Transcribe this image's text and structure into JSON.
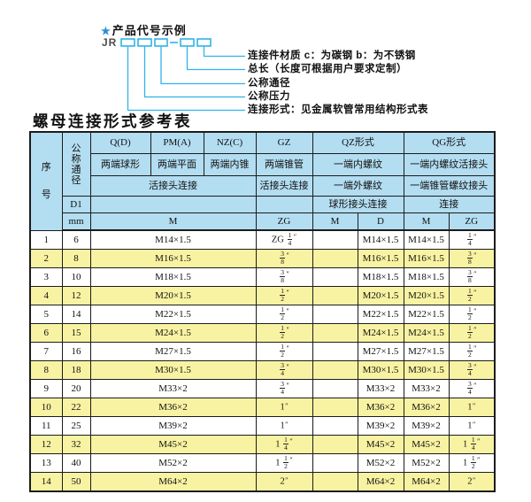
{
  "colors": {
    "accent": "#2fb4e8",
    "star": "#2a8fd0",
    "header_bg": "#b3ddf1",
    "row_alt_bg": "#f8f3a2",
    "border": "#1c1c1c"
  },
  "diagram": {
    "star": "★",
    "title": "产品代号示例",
    "code_prefix": "JR",
    "labels": [
      "连接件材质  c：为碳钢  b：为不锈钢",
      "总长（长度可根据用户要求定制）",
      "公称通径",
      "公称压力",
      "连接形式：见金属软管常用结构形式表"
    ]
  },
  "table": {
    "title": "螺母连接形式参考表",
    "quote": "″",
    "header": {
      "col_no": "序号",
      "col_dn": "公称通径",
      "d1": "D1",
      "mm": "mm",
      "q": "Q(D)",
      "q_sub": "两端球形",
      "pm": "PM(A)",
      "pm_sub": "两端平面",
      "nz": "NZ(C)",
      "nz_sub": "两端内锥",
      "gz": "GZ",
      "gz_sub": "两端锥管",
      "union_join_left": "活接头连接",
      "union_join_gz": "活接头连接",
      "qz": "QZ形式",
      "qz_sub1": "一端内螺纹",
      "qz_sub2": "一端外螺纹",
      "qz_sub3": "球形接头连接",
      "qg": "QG形式",
      "qg_sub1": "一端内螺纹活接头",
      "qg_sub2": "一端锥管螺纹接头",
      "qg_sub3": "连接",
      "m_span": "M",
      "zg_gz": "ZG",
      "qz_m": "M",
      "qz_d": "D",
      "qg_m": "M",
      "qg_zg": "ZG"
    },
    "rows": [
      {
        "no": "1",
        "mm": "6",
        "m": "M14×1.5",
        "gz": {
          "pre": "ZG ",
          "num": "1",
          "den": "4"
        },
        "qz_m": "",
        "qz_d": "M14×1.5",
        "qg_m": "M14×1.5",
        "qg_zg": {
          "num": "1",
          "den": "4"
        }
      },
      {
        "no": "2",
        "mm": "8",
        "m": "M16×1.5",
        "gz": {
          "num": "3",
          "den": "8"
        },
        "qz_m": "",
        "qz_d": "M16×1.5",
        "qg_m": "M16×1.5",
        "qg_zg": {
          "num": "3",
          "den": "8"
        }
      },
      {
        "no": "3",
        "mm": "10",
        "m": "M18×1.5",
        "gz": {
          "num": "3",
          "den": "8"
        },
        "qz_m": "",
        "qz_d": "M18×1.5",
        "qg_m": "M18×1.5",
        "qg_zg": {
          "num": "3",
          "den": "8"
        }
      },
      {
        "no": "4",
        "mm": "12",
        "m": "M20×1.5",
        "gz": {
          "num": "1",
          "den": "2"
        },
        "qz_m": "",
        "qz_d": "M20×1.5",
        "qg_m": "M20×1.5",
        "qg_zg": {
          "num": "1",
          "den": "2"
        }
      },
      {
        "no": "5",
        "mm": "14",
        "m": "M22×1.5",
        "gz": {
          "num": "1",
          "den": "2"
        },
        "qz_m": "",
        "qz_d": "M22×1.5",
        "qg_m": "M22×1.5",
        "qg_zg": {
          "num": "1",
          "den": "2"
        }
      },
      {
        "no": "6",
        "mm": "15",
        "m": "M24×1.5",
        "gz": {
          "num": "1",
          "den": "2"
        },
        "qz_m": "",
        "qz_d": "M24×1.5",
        "qg_m": "M24×1.5",
        "qg_zg": {
          "num": "1",
          "den": "2"
        }
      },
      {
        "no": "7",
        "mm": "16",
        "m": "M27×1.5",
        "gz": {
          "num": "1",
          "den": "2"
        },
        "qz_m": "",
        "qz_d": "M27×1.5",
        "qg_m": "M27×1.5",
        "qg_zg": {
          "num": "1",
          "den": "2"
        }
      },
      {
        "no": "8",
        "mm": "18",
        "m": "M30×1.5",
        "gz": {
          "num": "3",
          "den": "4"
        },
        "qz_m": "",
        "qz_d": "M30×1.5",
        "qg_m": "M30×1.5",
        "qg_zg": {
          "num": "3",
          "den": "4"
        }
      },
      {
        "no": "9",
        "mm": "20",
        "m": "M33×2",
        "gz": {
          "num": "3",
          "den": "4"
        },
        "qz_m": "",
        "qz_d": "M33×2",
        "qg_m": "M33×2",
        "qg_zg": {
          "num": "3",
          "den": "4"
        }
      },
      {
        "no": "10",
        "mm": "22",
        "m": "M36×2",
        "gz": {
          "pre": "1"
        },
        "qz_m": "",
        "qz_d": "M36×2",
        "qg_m": "M36×2",
        "qg_zg": {
          "pre": "1"
        }
      },
      {
        "no": "11",
        "mm": "25",
        "m": "M39×2",
        "gz": {
          "pre": "1"
        },
        "qz_m": "",
        "qz_d": "M39×2",
        "qg_m": "M39×2",
        "qg_zg": {
          "pre": "1"
        }
      },
      {
        "no": "12",
        "mm": "32",
        "m": "M45×2",
        "gz": {
          "pre": "1 ",
          "num": "1",
          "den": "4"
        },
        "qz_m": "",
        "qz_d": "M45×2",
        "qg_m": "M45×2",
        "qg_zg": {
          "pre": "1 ",
          "num": "1",
          "den": "4"
        }
      },
      {
        "no": "13",
        "mm": "40",
        "m": "M52×2",
        "gz": {
          "pre": "1 ",
          "num": "1",
          "den": "2"
        },
        "qz_m": "",
        "qz_d": "M52×2",
        "qg_m": "M52×2",
        "qg_zg": {
          "pre": "1 ",
          "num": "1",
          "den": "2"
        }
      },
      {
        "no": "14",
        "mm": "50",
        "m": "M64×2",
        "gz": {
          "pre": "2"
        },
        "qz_m": "",
        "qz_d": "M64×2",
        "qg_m": "M64×2",
        "qg_zg": {
          "pre": "2"
        }
      }
    ]
  }
}
